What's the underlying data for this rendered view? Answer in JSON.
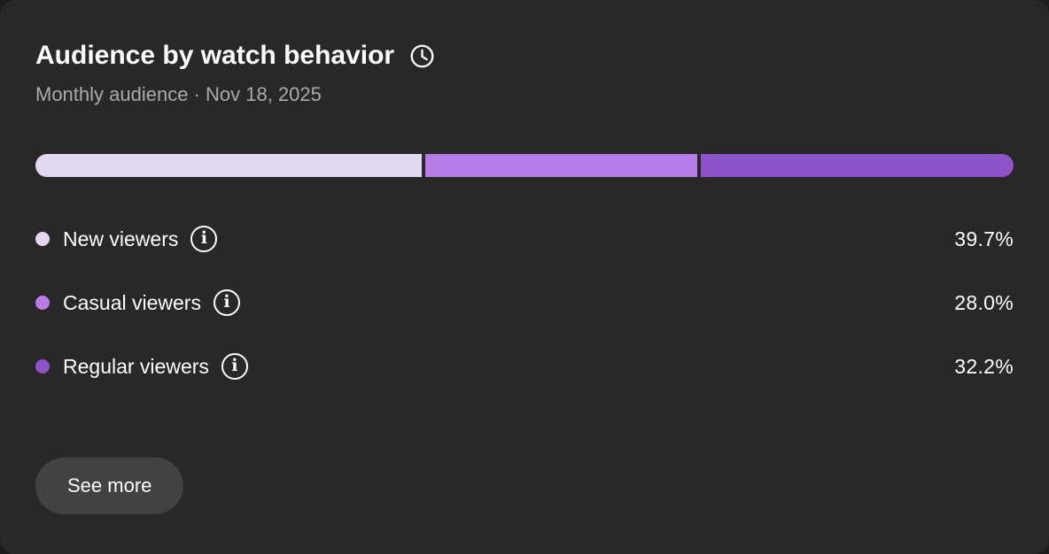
{
  "card": {
    "title": "Audience by watch behavior",
    "subtitle": "Monthly audience · Nov 18, 2025",
    "see_more_label": "See more",
    "title_icon": "clock-icon",
    "info_glyph": "i"
  },
  "colors": {
    "page_bg": "#1c1c1c",
    "card_bg": "#282828",
    "text_primary": "#ffffff",
    "text_secondary": "#aaaaaa",
    "button_bg": "#424242",
    "new_viewers": "#e3d8f2",
    "casual_viewers": "#b77ce8",
    "regular_viewers": "#8e53c8"
  },
  "chart_data": {
    "type": "bar",
    "subtype": "stacked-horizontal-100pct",
    "title": "Audience by watch behavior",
    "subtitle": "Monthly audience · Nov 18, 2025",
    "unit": "%",
    "legend_position": "below",
    "segments": [
      {
        "label": "New viewers",
        "value": 39.7,
        "display": "39.7%",
        "color": "#e3d8f2"
      },
      {
        "label": "Casual viewers",
        "value": 28.0,
        "display": "28.0%",
        "color": "#b77ce8"
      },
      {
        "label": "Regular viewers",
        "value": 32.2,
        "display": "32.2%",
        "color": "#8e53c8"
      }
    ]
  }
}
